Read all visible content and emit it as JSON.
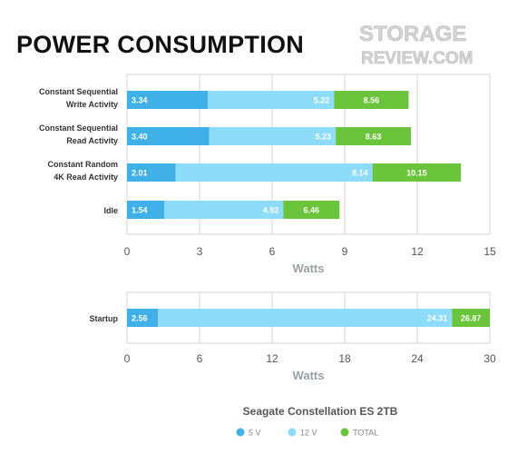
{
  "title": "POWER CONSUMPTION",
  "logo": {
    "line1": "STORAGE",
    "line2": "REVIEW.COM"
  },
  "colors": {
    "v5": "#3fb1e8",
    "v12": "#8cdcfa",
    "total": "#6ac53a",
    "grid": "#d6d6d6",
    "axis_title": "#9aa0a6"
  },
  "chart_data": [
    {
      "type": "bar",
      "orientation": "horizontal",
      "categories": [
        "Constant Sequential Write Activity",
        "Constant Sequential Read Activity",
        "Constant Random 4K Read Activity",
        "Idle"
      ],
      "series": [
        {
          "name": "5 V",
          "values": [
            3.34,
            3.4,
            2.01,
            1.54
          ]
        },
        {
          "name": "12 V",
          "values": [
            5.22,
            5.23,
            8.14,
            4.92
          ]
        },
        {
          "name": "TOTAL",
          "values": [
            8.56,
            8.63,
            10.15,
            6.46
          ]
        }
      ],
      "xlabel": "Watts",
      "xlim": [
        0,
        15
      ],
      "xticks": [
        0,
        3,
        6,
        9,
        12,
        15
      ],
      "grid": true
    },
    {
      "type": "bar",
      "orientation": "horizontal",
      "categories": [
        "Startup"
      ],
      "series": [
        {
          "name": "5 V",
          "values": [
            2.56
          ]
        },
        {
          "name": "12 V",
          "values": [
            24.31
          ]
        },
        {
          "name": "TOTAL",
          "values": [
            26.87
          ]
        }
      ],
      "xlabel": "Watts",
      "xlim": [
        0,
        30
      ],
      "xticks": [
        0,
        6,
        12,
        18,
        24,
        30
      ],
      "grid": true
    }
  ],
  "legend": {
    "title": "Seagate Constellation ES 2TB",
    "items": [
      {
        "label": "5 V",
        "color": "#3fb1e8"
      },
      {
        "label": "12 V",
        "color": "#8cdcfa"
      },
      {
        "label": "TOTAL",
        "color": "#6ac53a"
      }
    ]
  }
}
